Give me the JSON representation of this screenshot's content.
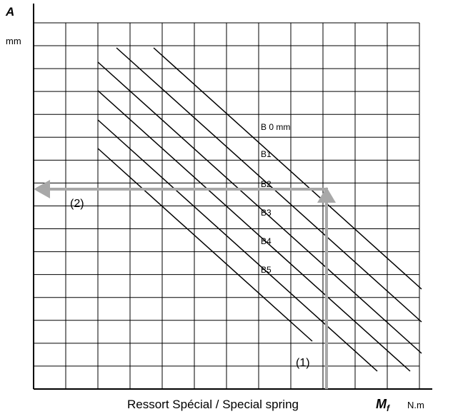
{
  "y_axis": {
    "symbol": "A",
    "unit": "mm"
  },
  "x_axis": {
    "symbol": "M",
    "subscript": "f",
    "unit": "N.m"
  },
  "caption": "Ressort Spécial / Special spring",
  "curves": [
    "B 0 mm",
    "B1",
    "B2",
    "B3",
    "B4",
    "B5"
  ],
  "arrows": [
    "(1)",
    "(2)"
  ]
}
